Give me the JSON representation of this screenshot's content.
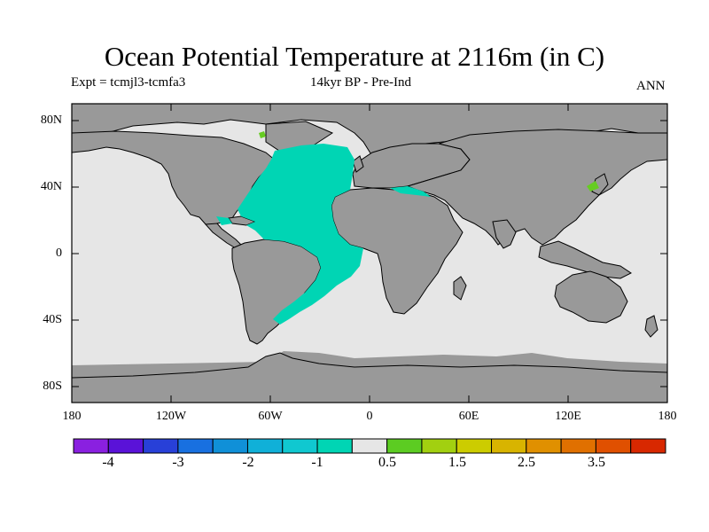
{
  "header": {
    "title": "Ocean Potential Temperature at 2116m (in C)",
    "expt": "Expt = tcmjl3-tcmfa3",
    "period": "14kyr BP - Pre-Ind",
    "season": "ANN"
  },
  "map": {
    "lat_labels": [
      "80N",
      "40N",
      "0",
      "40S",
      "80S"
    ],
    "lon_labels": [
      "180",
      "120W",
      "60W",
      "0",
      "60E",
      "120E",
      "180"
    ],
    "colors": {
      "land": "#999999",
      "ocean_neutral": "#e6e6e6",
      "anomaly_cool": "#00d5b4",
      "anomaly_warm": "#66cc22",
      "coastline": "#000000"
    }
  },
  "colorbar": {
    "colors": [
      "#8a20e0",
      "#5a12d8",
      "#2840d8",
      "#1870e0",
      "#1090d8",
      "#10b0d8",
      "#10c8d0",
      "#00d5b4",
      "#e6e6e6",
      "#5ccc22",
      "#a2d010",
      "#cccc00",
      "#d8b400",
      "#e09000",
      "#e07000",
      "#e05000",
      "#d82800"
    ],
    "labels": [
      "-4",
      "-3",
      "-2",
      "-1",
      "0.5",
      "1.5",
      "2.5",
      "3.5"
    ]
  }
}
